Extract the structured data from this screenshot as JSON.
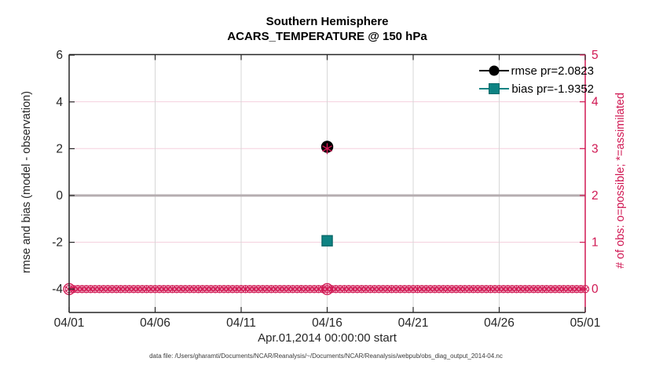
{
  "figure": {
    "title_line1": "Southern Hemisphere",
    "title_line2": "ACARS_TEMPERATURE @ 150 hPa",
    "xlabel": "Apr.01,2014 00:00:00 start",
    "ylabel_left": "rmse and bias (model - observation)",
    "ylabel_right": "# of obs: o=possible; *=assimilated",
    "caption": "data file: /Users/gharamti/Documents/NCAR/Reanalysis/~/Documents/NCAR/Reanalysis/webpub/obs_diag_output_2014-04.nc"
  },
  "legend": {
    "rmse_label": "rmse pr=2.0823",
    "bias_label": "bias pr=-1.9352"
  },
  "colors": {
    "crimson": "#d01853",
    "pink_grid": "#f5d0de",
    "teal": "#0e8383",
    "teal_edge": "#0a6a6a",
    "black": "#000000",
    "spine": "#262626",
    "tick_label": "#262626",
    "v_grid": "#d7d7d7",
    "zero_line": "#b5adb0"
  },
  "chart_data": {
    "type": "line",
    "title": "Southern Hemisphere  ACARS_TEMPERATURE @ 150 hPa",
    "x_axis": {
      "tick_labels": [
        "04/01",
        "04/06",
        "04/11",
        "04/16",
        "04/21",
        "04/26",
        "05/01"
      ],
      "tick_days": [
        0,
        5,
        10,
        15,
        20,
        25,
        30
      ],
      "range_days": [
        0,
        30
      ],
      "label": "Apr.01,2014 00:00:00 start"
    },
    "y_left": {
      "label": "rmse and bias (model - observation)",
      "ticks": [
        6,
        4,
        2,
        0,
        -2,
        -4
      ],
      "range": [
        -5,
        6.05
      ]
    },
    "y_right": {
      "label": "# of obs: o=possible; *=assimilated",
      "ticks": [
        5,
        4,
        3,
        2,
        1,
        0
      ],
      "range": [
        -0.5,
        5.05
      ]
    },
    "series": [
      {
        "name": "rmse",
        "x_day": 15,
        "x_label": "04/16",
        "value": 2.0823,
        "marker": "filled-circle",
        "color": "#000000"
      },
      {
        "name": "bias",
        "x_day": 15,
        "x_label": "04/16",
        "value": -1.9352,
        "marker": "filled-square",
        "color": "#0e8383"
      },
      {
        "name": "obs-assimilated-peak",
        "x_day": 15,
        "x_label": "04/16",
        "value_right_axis": 3,
        "marker": "asterisk",
        "color": "#d01853"
      }
    ],
    "obs_band": {
      "description": "# of obs markers (o=possible, *=assimilated) plotted at right-axis value 0 for every 6-hour verification bin",
      "start_day": 0,
      "end_day": 30,
      "step_days": 0.25,
      "value_right_axis": 0,
      "highlight_days": [
        0,
        15
      ]
    },
    "zero_line": {
      "value_left_axis": 0
    },
    "grid": {
      "horizontal_at_right_ticks": [
        0,
        1,
        2,
        3,
        4
      ],
      "vertical_at_days": [
        5,
        10,
        15,
        20,
        25
      ]
    },
    "legend_position": "top-right-inside",
    "legend_box": false
  }
}
